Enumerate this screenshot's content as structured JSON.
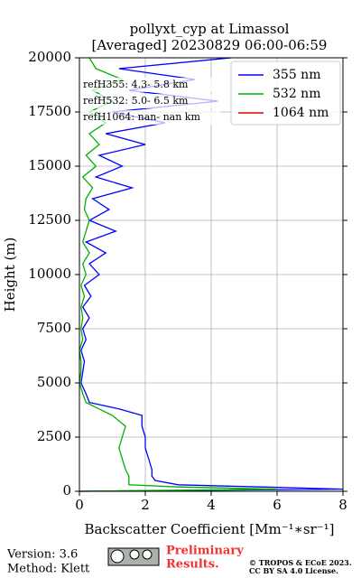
{
  "chart_data": {
    "type": "line",
    "title": [
      "pollyxt_cyp at Limassol",
      "[Averaged] 20230829 06:00-06:59"
    ],
    "x_label": "Backscatter Coefficient [Mm⁻¹∗sr⁻¹]",
    "y_label": "Height (m)",
    "heights": [
      0,
      100,
      200,
      300,
      500,
      700,
      1000,
      1500,
      2000,
      2500,
      3000,
      3500,
      3800,
      4100,
      4500,
      5000,
      5500,
      6000,
      6500,
      7000,
      7500,
      8000,
      8500,
      9000,
      9500,
      10000,
      10500,
      11000,
      11500,
      12000,
      12500,
      13000,
      13500,
      14000,
      14500,
      15000,
      15500,
      16000,
      16500,
      17000,
      17500,
      18000,
      18500,
      19000,
      19500,
      20000
    ],
    "series": [
      {
        "name": "355 nm",
        "color": "#0000ff",
        "values": [
          0,
          8,
          5.5,
          3,
          2.3,
          2.2,
          2.2,
          2.1,
          2.0,
          2.0,
          1.9,
          1.9,
          1.2,
          0.3,
          0.2,
          0.05,
          0.1,
          0.15,
          0.05,
          0.2,
          0.1,
          0.3,
          0.1,
          0.35,
          0.15,
          0.6,
          0.3,
          0.8,
          0.2,
          1.1,
          0.3,
          0.9,
          0.4,
          1.6,
          0.5,
          1.3,
          0.6,
          2.0,
          0.8,
          2.6,
          1.0,
          4.2,
          1.5,
          3.5,
          1.2,
          4.6
        ]
      },
      {
        "name": "532 nm",
        "color": "#00b000",
        "values": [
          0,
          6,
          3,
          1.5,
          1.5,
          1.5,
          1.4,
          1.3,
          1.2,
          1.3,
          1.4,
          1.0,
          0.6,
          0.2,
          0.1,
          0,
          0.05,
          0.05,
          0,
          0.1,
          0.05,
          0.1,
          0.05,
          0.15,
          0.05,
          0.2,
          0.1,
          0.3,
          0.1,
          0.2,
          0.3,
          0.15,
          0.2,
          0.4,
          0.1,
          0.5,
          0.2,
          0.6,
          0.3,
          0.8,
          0.3,
          1.0,
          0.4,
          1.3,
          0.5,
          0.3
        ]
      },
      {
        "name": "1064 nm",
        "color": "#e00000",
        "values": [
          null,
          null,
          null,
          null,
          null,
          null,
          null,
          null,
          null,
          null,
          null,
          null,
          null,
          null,
          null,
          null,
          null,
          null,
          null,
          null,
          null,
          null,
          null,
          null,
          null,
          null,
          null,
          null,
          null,
          null,
          null,
          null,
          null,
          null,
          null,
          null,
          null,
          null,
          null,
          null,
          null,
          null,
          null,
          null,
          null,
          null
        ]
      }
    ],
    "xlim": [
      0,
      8
    ],
    "xticks": [
      0,
      2,
      4,
      6,
      8
    ],
    "ylim": [
      0,
      20000
    ],
    "yticks": [
      0,
      2500,
      5000,
      7500,
      10000,
      12500,
      15000,
      17500,
      20000
    ],
    "grid": true,
    "legend": "upper right",
    "annotations": [
      "refH355:  4.3- 5.8 km",
      "refH532:  5.0- 6.5 km",
      "refH1064:  nan- nan km"
    ]
  },
  "footer": {
    "version": "Version: 3.6",
    "method": "Method: Klett",
    "status": [
      "Preliminary",
      "Results."
    ],
    "copyright": [
      "© TROPOS & ECoE 2023.",
      "CC BY SA 4.0 License."
    ]
  }
}
